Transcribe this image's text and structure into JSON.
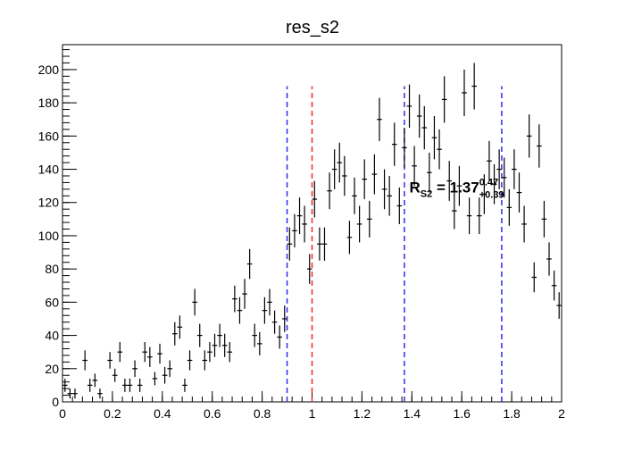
{
  "chart_data": {
    "type": "scatter",
    "title": "res_s2",
    "xlabel": "",
    "ylabel": "",
    "xlim": [
      0,
      2
    ],
    "ylim": [
      0,
      215
    ],
    "x_ticks": [
      0,
      0.2,
      0.4,
      0.6,
      0.8,
      1,
      1.2,
      1.4,
      1.6,
      1.8,
      2
    ],
    "x_tick_labels": [
      "0",
      "0.2",
      "0.4",
      "0.6",
      "0.8",
      "1",
      "1.2",
      "1.4",
      "1.6",
      "1.8",
      "2"
    ],
    "y_ticks": [
      0,
      20,
      40,
      60,
      80,
      100,
      120,
      140,
      160,
      180,
      200
    ],
    "y_tick_labels": [
      "0",
      "20",
      "40",
      "60",
      "80",
      "100",
      "120",
      "140",
      "160",
      "180",
      "200"
    ],
    "grid": false,
    "series": [
      {
        "color": "#000000",
        "x": [
          0.01,
          0.03,
          0.05,
          0.09,
          0.11,
          0.13,
          0.15,
          0.19,
          0.21,
          0.23,
          0.25,
          0.27,
          0.29,
          0.31,
          0.33,
          0.35,
          0.37,
          0.39,
          0.41,
          0.43,
          0.45,
          0.47,
          0.49,
          0.51,
          0.53,
          0.55,
          0.57,
          0.59,
          0.61,
          0.63,
          0.65,
          0.67,
          0.69,
          0.71,
          0.73,
          0.75,
          0.77,
          0.79,
          0.81,
          0.83,
          0.85,
          0.87,
          0.89,
          0.91,
          0.93,
          0.95,
          0.97,
          0.99,
          1.01,
          1.03,
          1.05,
          1.07,
          1.09,
          1.11,
          1.13,
          1.15,
          1.17,
          1.19,
          1.21,
          1.23,
          1.25,
          1.27,
          1.29,
          1.31,
          1.33,
          1.35,
          1.37,
          1.39,
          1.41,
          1.43,
          1.45,
          1.47,
          1.49,
          1.51,
          1.53,
          1.55,
          1.57,
          1.59,
          1.61,
          1.63,
          1.65,
          1.67,
          1.69,
          1.71,
          1.73,
          1.75,
          1.77,
          1.79,
          1.81,
          1.83,
          1.85,
          1.87,
          1.89,
          1.91,
          1.93,
          1.95,
          1.97,
          1.99
        ],
        "y": [
          10,
          5,
          5,
          25,
          10,
          13,
          5,
          25,
          16,
          30,
          10,
          10,
          20,
          10,
          30,
          27,
          14,
          29,
          16,
          20,
          41,
          45,
          10,
          25,
          60,
          40,
          25,
          30,
          34,
          40,
          34,
          30,
          62,
          55,
          65,
          83,
          40,
          35,
          55,
          60,
          48,
          39,
          50,
          95,
          103,
          112,
          107,
          80,
          122,
          95,
          95,
          127,
          140,
          144,
          136,
          99,
          124,
          107,
          134,
          110,
          137,
          170,
          128,
          124,
          155,
          118,
          153,
          178,
          142,
          172,
          165,
          138,
          159,
          152,
          182,
          133,
          115,
          130,
          186,
          112,
          190,
          112,
          125,
          145,
          131,
          140,
          135,
          117,
          140,
          126,
          107,
          160,
          75,
          154,
          110,
          86,
          70,
          58
        ],
        "yerr": [
          4,
          3,
          3,
          6,
          4,
          4,
          3,
          5,
          4,
          6,
          4,
          4,
          5,
          4,
          6,
          6,
          4,
          6,
          5,
          5,
          7,
          7,
          4,
          6,
          8,
          7,
          6,
          6,
          7,
          7,
          7,
          6,
          8,
          8,
          9,
          9,
          7,
          7,
          8,
          8,
          7,
          7,
          8,
          10,
          10,
          11,
          11,
          9,
          11,
          10,
          10,
          11,
          12,
          12,
          12,
          10,
          11,
          11,
          12,
          11,
          12,
          13,
          12,
          12,
          13,
          11,
          12,
          13,
          12,
          13,
          13,
          12,
          13,
          12,
          14,
          12,
          11,
          12,
          14,
          11,
          14,
          11,
          12,
          12,
          12,
          12,
          12,
          11,
          12,
          12,
          11,
          13,
          9,
          13,
          11,
          10,
          9,
          8
        ]
      }
    ],
    "vlines": [
      {
        "x": 0.9,
        "color": "#2d2df5",
        "style": "dashed",
        "ymax": 190
      },
      {
        "x": 1.0,
        "color": "#f02828",
        "style": "dashed",
        "ymax": 190
      },
      {
        "x": 1.37,
        "color": "#2d2df5",
        "style": "dashed",
        "ymax": 190
      },
      {
        "x": 1.76,
        "color": "#2d2df5",
        "style": "dashed",
        "ymax": 190
      }
    ],
    "annotation": {
      "base": "R",
      "subscript": "S2",
      "equals": " = ",
      "value": "1.37",
      "sup": "0.47",
      "sub": "+0.39",
      "x": 1.39,
      "y": 126
    }
  }
}
